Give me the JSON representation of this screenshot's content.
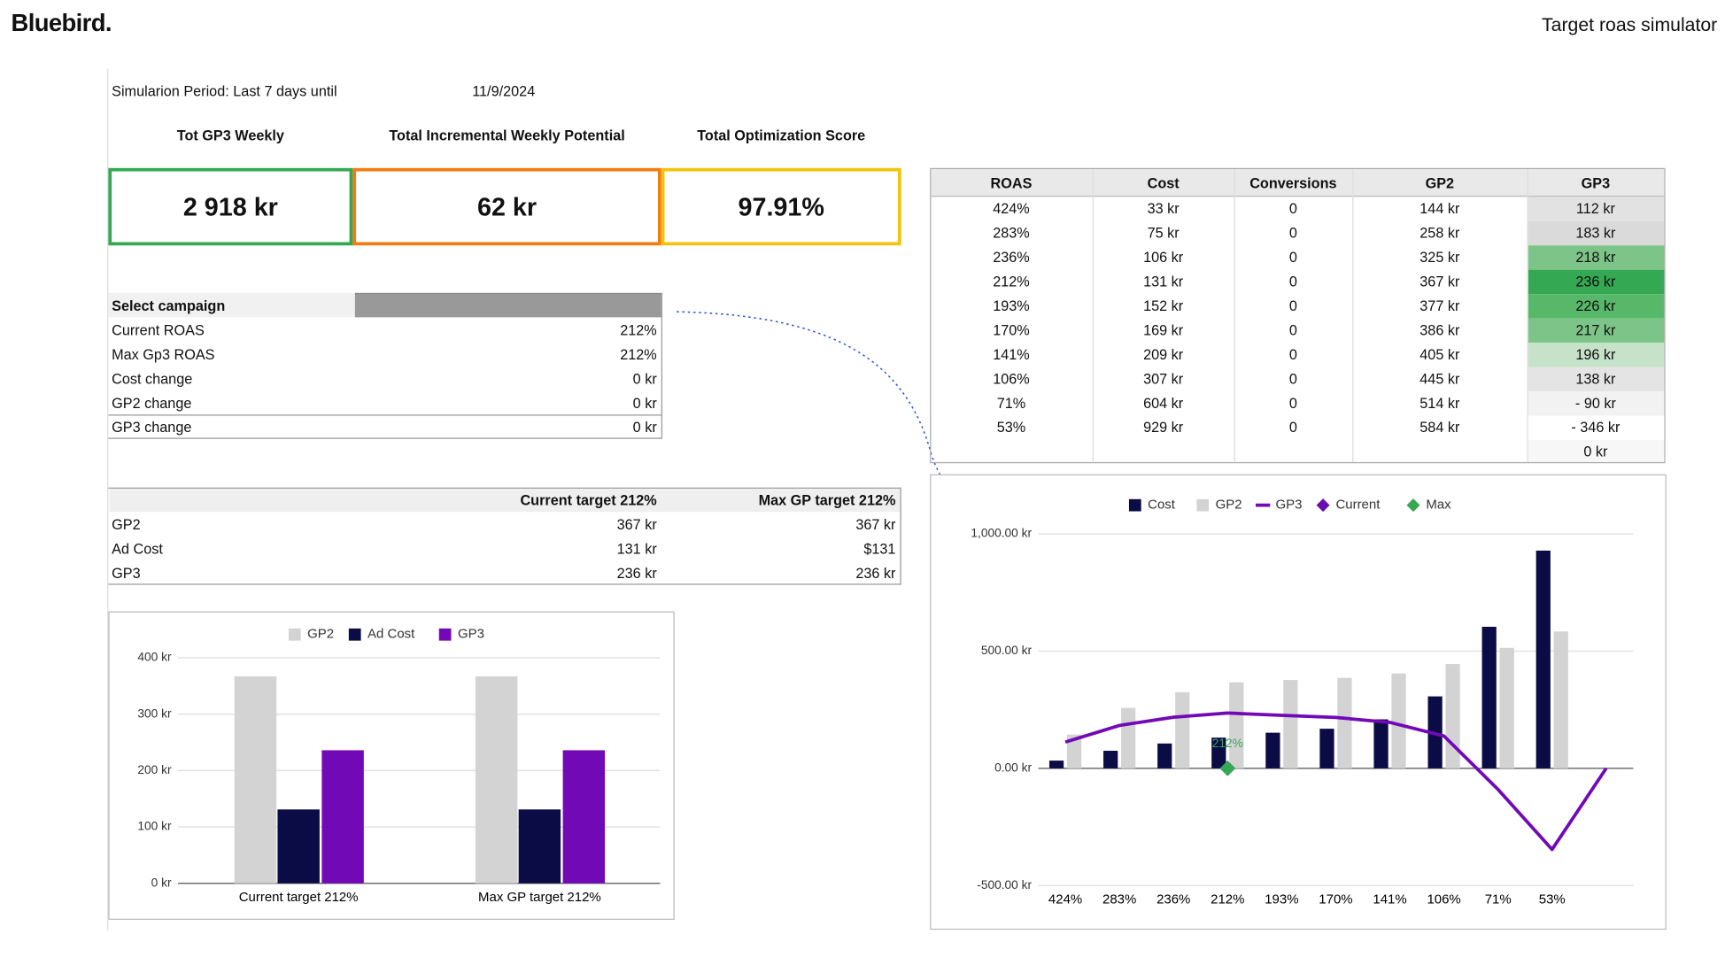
{
  "header": {
    "logo": "Bluebird.",
    "title": "Target roas simulator"
  },
  "period": {
    "label": "Simularion Period:  Last 7 days until",
    "date": "11/9/2024"
  },
  "kpis": [
    {
      "label": "Tot GP3 Weekly",
      "value": "2 918 kr",
      "color": "#34a853"
    },
    {
      "label": "Total Incremental Weekly Potential",
      "value": "62 kr",
      "color": "#f07c12"
    },
    {
      "label": "Total Optimization Score",
      "value": "97.91%",
      "color": "#f4c20d"
    }
  ],
  "campaign": {
    "header": "Select campaign",
    "rows": [
      [
        "Current ROAS",
        "212%"
      ],
      [
        "Max Gp3 ROAS",
        "212%"
      ],
      [
        "Cost change",
        "0 kr"
      ],
      [
        "GP2 change",
        "0 kr"
      ],
      [
        "GP3 change",
        "0 kr"
      ]
    ]
  },
  "comparison": {
    "columns": [
      "Current target 212%",
      "Max GP target 212%"
    ],
    "rows": [
      [
        "GP2",
        "367 kr",
        "367 kr"
      ],
      [
        "Ad Cost",
        "131 kr",
        "$131"
      ],
      [
        "GP3",
        "236 kr",
        "236 kr"
      ]
    ]
  },
  "table": {
    "columns": [
      "ROAS",
      "Cost",
      "Conversions",
      "GP2",
      "GP3"
    ],
    "rows": [
      [
        "424%",
        "33 kr",
        "0",
        "144 kr",
        "112 kr"
      ],
      [
        "283%",
        "75 kr",
        "0",
        "258 kr",
        "183 kr"
      ],
      [
        "236%",
        "106 kr",
        "0",
        "325 kr",
        "218 kr"
      ],
      [
        "212%",
        "131 kr",
        "0",
        "367 kr",
        "236 kr"
      ],
      [
        "193%",
        "152 kr",
        "0",
        "377 kr",
        "226 kr"
      ],
      [
        "170%",
        "169 kr",
        "0",
        "386 kr",
        "217 kr"
      ],
      [
        "141%",
        "209 kr",
        "0",
        "405 kr",
        "196 kr"
      ],
      [
        "106%",
        "307 kr",
        "0",
        "445 kr",
        "138 kr"
      ],
      [
        "71%",
        "604 kr",
        "0",
        "514 kr",
        "-  90 kr"
      ],
      [
        "53%",
        "929 kr",
        "0",
        "584 kr",
        "-  346 kr"
      ]
    ],
    "footer": "0 kr",
    "gp3_colors": [
      "#e2e2e2",
      "#dadada",
      "#7cc487",
      "#34a853",
      "#58b869",
      "#7cc487",
      "#c6e3c9",
      "#e4e4e4",
      "#f2f2f2",
      "#ffffff"
    ]
  },
  "chart_data": [
    {
      "type": "bar",
      "categories": [
        "Current target 212%",
        "Max GP target 212%"
      ],
      "series": [
        {
          "name": "GP2",
          "color": "#d3d3d3",
          "values": [
            367,
            367
          ]
        },
        {
          "name": "Ad Cost",
          "color": "#0b0c45",
          "values": [
            131,
            131
          ]
        },
        {
          "name": "GP3",
          "color": "#7209b7",
          "values": [
            236,
            236
          ]
        }
      ],
      "ylim": [
        0,
        400
      ],
      "yticks": [
        {
          "value": 0,
          "label": "0 kr"
        },
        {
          "value": 100,
          "label": "100 kr"
        },
        {
          "value": 200,
          "label": "200 kr"
        },
        {
          "value": 300,
          "label": "300 kr"
        },
        {
          "value": 400,
          "label": "400 kr"
        }
      ],
      "grid": true,
      "legend": "top"
    },
    {
      "type": "combo",
      "categories": [
        "424%",
        "283%",
        "236%",
        "212%",
        "193%",
        "170%",
        "141%",
        "106%",
        "71%",
        "53%",
        null
      ],
      "series": [
        {
          "name": "Cost",
          "kind": "bar",
          "color": "#0b0c45",
          "values": [
            33,
            75,
            106,
            131,
            152,
            169,
            209,
            307,
            604,
            929,
            null
          ]
        },
        {
          "name": "GP2",
          "kind": "bar",
          "color": "#d3d3d3",
          "values": [
            144,
            258,
            325,
            367,
            377,
            386,
            405,
            445,
            514,
            584,
            null
          ]
        },
        {
          "name": "GP3",
          "kind": "line",
          "color": "#7209b7",
          "values": [
            112,
            183,
            218,
            236,
            226,
            217,
            196,
            138,
            -90,
            -346,
            0
          ]
        },
        {
          "name": "Current",
          "kind": "marker",
          "color": "#6a0dad",
          "values": [
            null,
            null,
            null,
            0,
            null,
            null,
            null,
            null,
            null,
            null,
            null
          ]
        },
        {
          "name": "Max",
          "kind": "marker",
          "color": "#34a853",
          "values": [
            null,
            null,
            null,
            0,
            null,
            null,
            null,
            null,
            null,
            null,
            null
          ]
        }
      ],
      "point_label": "212%",
      "ylim": [
        -500,
        1000
      ],
      "yticks": [
        {
          "value": -500,
          "label": "-500.00 kr"
        },
        {
          "value": 0,
          "label": "0.00 kr"
        },
        {
          "value": 500,
          "label": "500.00 kr"
        },
        {
          "value": 1000,
          "label": "1,000.00 kr"
        }
      ],
      "grid": true,
      "legend": "top"
    }
  ]
}
